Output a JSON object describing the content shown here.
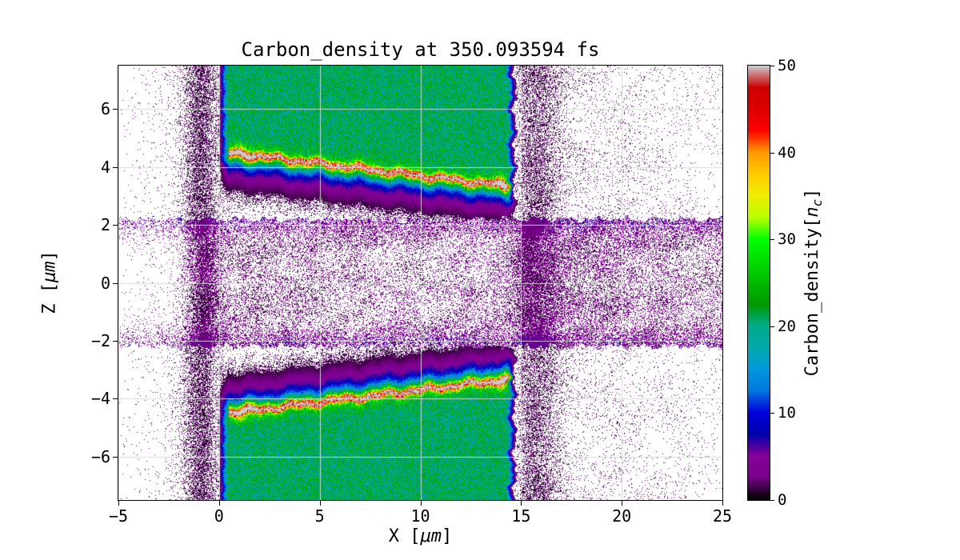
{
  "figure": {
    "title": "Carbon_density at 350.093594 fs",
    "background": "#ffffff"
  },
  "axes": {
    "xlabel": {
      "prefix": "X [",
      "unit": "μm",
      "suffix": "]"
    },
    "ylabel": {
      "prefix": "Z [",
      "unit": "μm",
      "suffix": "]"
    },
    "xlim": [
      -5,
      25
    ],
    "ylim": [
      -7.5,
      7.5
    ],
    "xticks": [
      {
        "v": -5,
        "label": "−5"
      },
      {
        "v": 0,
        "label": "0"
      },
      {
        "v": 5,
        "label": "5"
      },
      {
        "v": 10,
        "label": "10"
      },
      {
        "v": 15,
        "label": "15"
      },
      {
        "v": 20,
        "label": "20"
      },
      {
        "v": 25,
        "label": "25"
      }
    ],
    "yticks": [
      {
        "v": 6,
        "label": "6"
      },
      {
        "v": 4,
        "label": "4"
      },
      {
        "v": 2,
        "label": "2"
      },
      {
        "v": 0,
        "label": "0"
      },
      {
        "v": -2,
        "label": "−2"
      },
      {
        "v": -4,
        "label": "−4"
      },
      {
        "v": -6,
        "label": "−6"
      }
    ],
    "grid_color": "#d8d8d8",
    "frame_color": "#000000"
  },
  "colorbar": {
    "label": {
      "prefix": "Carbon_density[",
      "var": "n",
      "sub": "c",
      "suffix": "]"
    },
    "ticks": [
      {
        "v": 0,
        "label": "0"
      },
      {
        "v": 10,
        "label": "10"
      },
      {
        "v": 20,
        "label": "20"
      },
      {
        "v": 30,
        "label": "30"
      },
      {
        "v": 40,
        "label": "40"
      },
      {
        "v": 50,
        "label": "50"
      }
    ],
    "range": [
      0,
      50
    ]
  },
  "chart_data": {
    "type": "heatmap",
    "title": "Carbon_density at 350.093594 fs",
    "xlabel": "X [μm]",
    "ylabel": "Z [μm]",
    "xlim": [
      -5,
      25
    ],
    "ylim": [
      -7.5,
      7.5
    ],
    "value_label": "Carbon_density[n_c]",
    "value_range": [
      0,
      50
    ],
    "grid": true,
    "colormap": "nipy_spectral",
    "colormap_stops": [
      [
        0.0,
        "#000000"
      ],
      [
        0.05,
        "#770088"
      ],
      [
        0.1,
        "#880099"
      ],
      [
        0.15,
        "#0000aa"
      ],
      [
        0.2,
        "#0000dd"
      ],
      [
        0.25,
        "#0077dd"
      ],
      [
        0.3,
        "#0099dd"
      ],
      [
        0.35,
        "#00aaaa"
      ],
      [
        0.4,
        "#00aa88"
      ],
      [
        0.45,
        "#009900"
      ],
      [
        0.5,
        "#00bb00"
      ],
      [
        0.55,
        "#00dd00"
      ],
      [
        0.6,
        "#00ff00"
      ],
      [
        0.65,
        "#bbff00"
      ],
      [
        0.7,
        "#eeee00"
      ],
      [
        0.75,
        "#ffcc00"
      ],
      [
        0.8,
        "#ff9900"
      ],
      [
        0.85,
        "#ff0000"
      ],
      [
        0.9,
        "#dd0000"
      ],
      [
        0.95,
        "#cc0000"
      ],
      [
        1.0,
        "#cccccc"
      ]
    ],
    "features": {
      "slabs": [
        {
          "x_range": [
            0,
            14.7
          ],
          "z_range": [
            2.2,
            7.5
          ],
          "density": 20
        },
        {
          "x_range": [
            0,
            14.7
          ],
          "z_range": [
            -7.5,
            -2.2
          ],
          "density": 20
        }
      ],
      "ridges": [
        {
          "x_range": [
            0.7,
            14.5
          ],
          "z_start": 4.45,
          "z_end": 3.35,
          "peak_density": 48
        },
        {
          "x_range": [
            0.7,
            14.5
          ],
          "z_start": -4.45,
          "z_end": -3.35,
          "peak_density": 48
        }
      ],
      "vacuum_noise": {
        "left_band_center_x": -0.85,
        "left_band_width": 0.8,
        "right_band_center_x": 15.7,
        "right_band_width": 1.0,
        "gap_fill_coverage": 0.25,
        "dot_density_range": [
          0.3,
          6
        ]
      }
    }
  }
}
